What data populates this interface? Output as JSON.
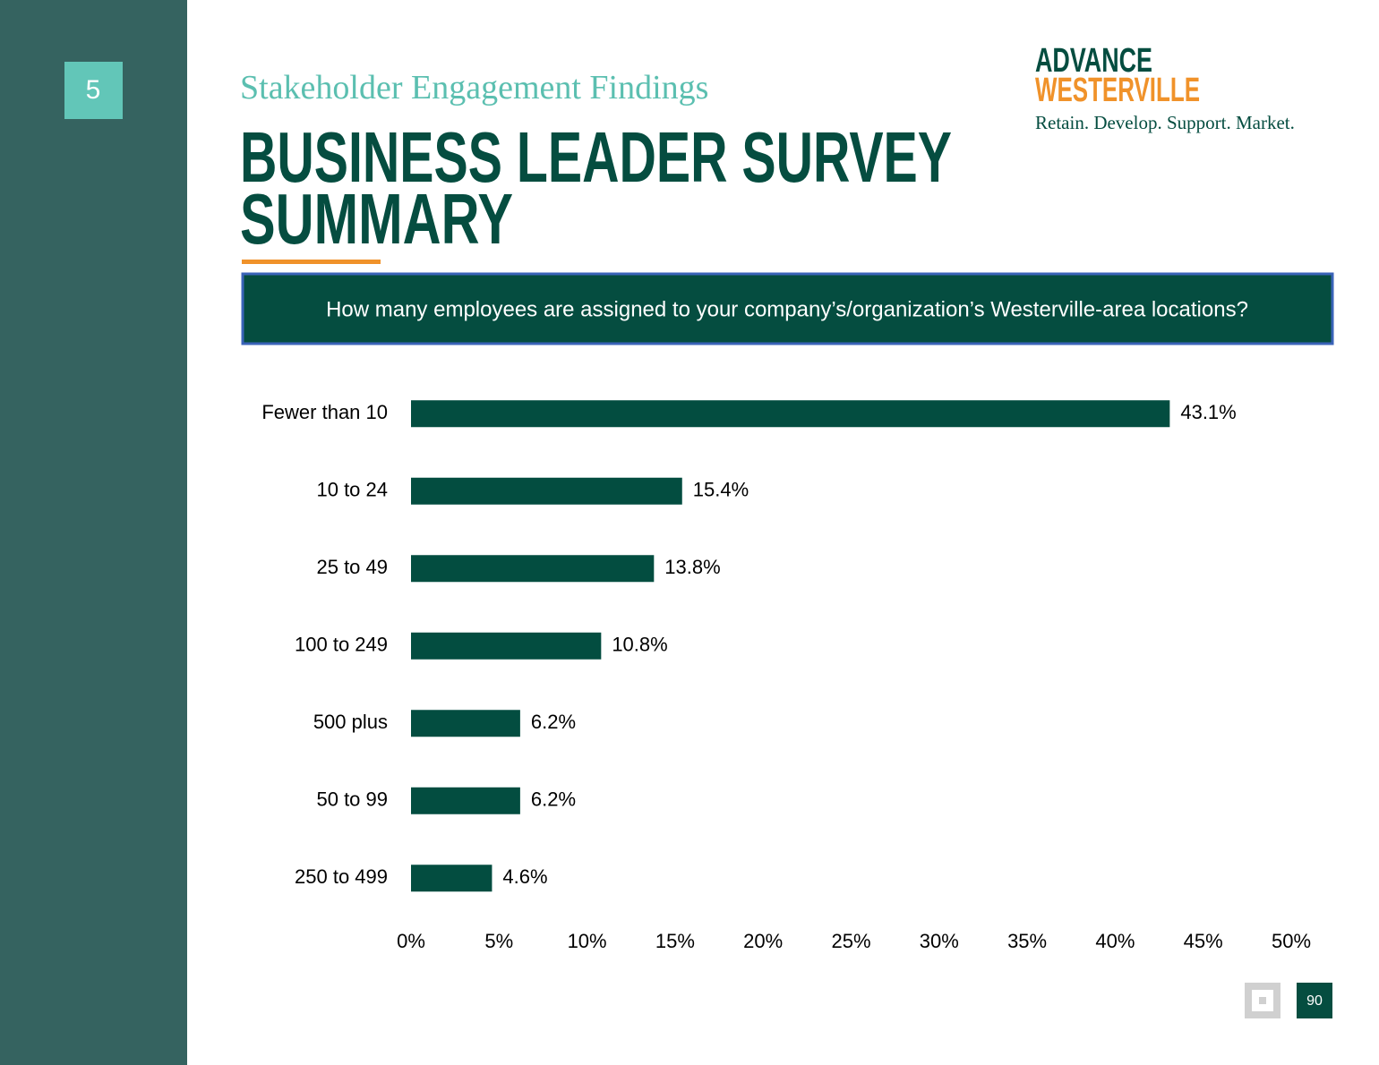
{
  "section_number": "5",
  "subtitle": "Stakeholder Engagement Findings",
  "title_lines": [
    "BUSINESS LEADER SURVEY",
    "SUMMARY"
  ],
  "logo": {
    "line1": "ADVANCE",
    "line2": "WESTERVILLE",
    "tagline": "Retain. Develop. Support. Market."
  },
  "question": "How many employees are assigned to your company’s/organization’s Westerville-area locations?",
  "page_number": "90",
  "chart_data": {
    "type": "hbar",
    "categories": [
      "Fewer than 10",
      "10 to 24",
      "25 to 49",
      "100 to 249",
      "500 plus",
      "50 to 99",
      "250 to 499"
    ],
    "values": [
      43.1,
      15.4,
      13.8,
      10.8,
      6.2,
      6.2,
      4.6
    ],
    "value_labels": [
      "43.1%",
      "15.4%",
      "13.8%",
      "10.8%",
      "6.2%",
      "6.2%",
      "4.6%"
    ],
    "color": "#034d40",
    "xlim": [
      0,
      50
    ],
    "xticks": [
      {
        "value": 0,
        "label": "0%"
      },
      {
        "value": 5,
        "label": "5%"
      },
      {
        "value": 10,
        "label": "10%"
      },
      {
        "value": 15,
        "label": "15%"
      },
      {
        "value": 20,
        "label": "20%"
      },
      {
        "value": 25,
        "label": "25%"
      },
      {
        "value": 30,
        "label": "30%"
      },
      {
        "value": 35,
        "label": "35%"
      },
      {
        "value": 40,
        "label": "40%"
      },
      {
        "value": 45,
        "label": "45%"
      },
      {
        "value": 50,
        "label": "50%"
      }
    ],
    "grid": false
  }
}
